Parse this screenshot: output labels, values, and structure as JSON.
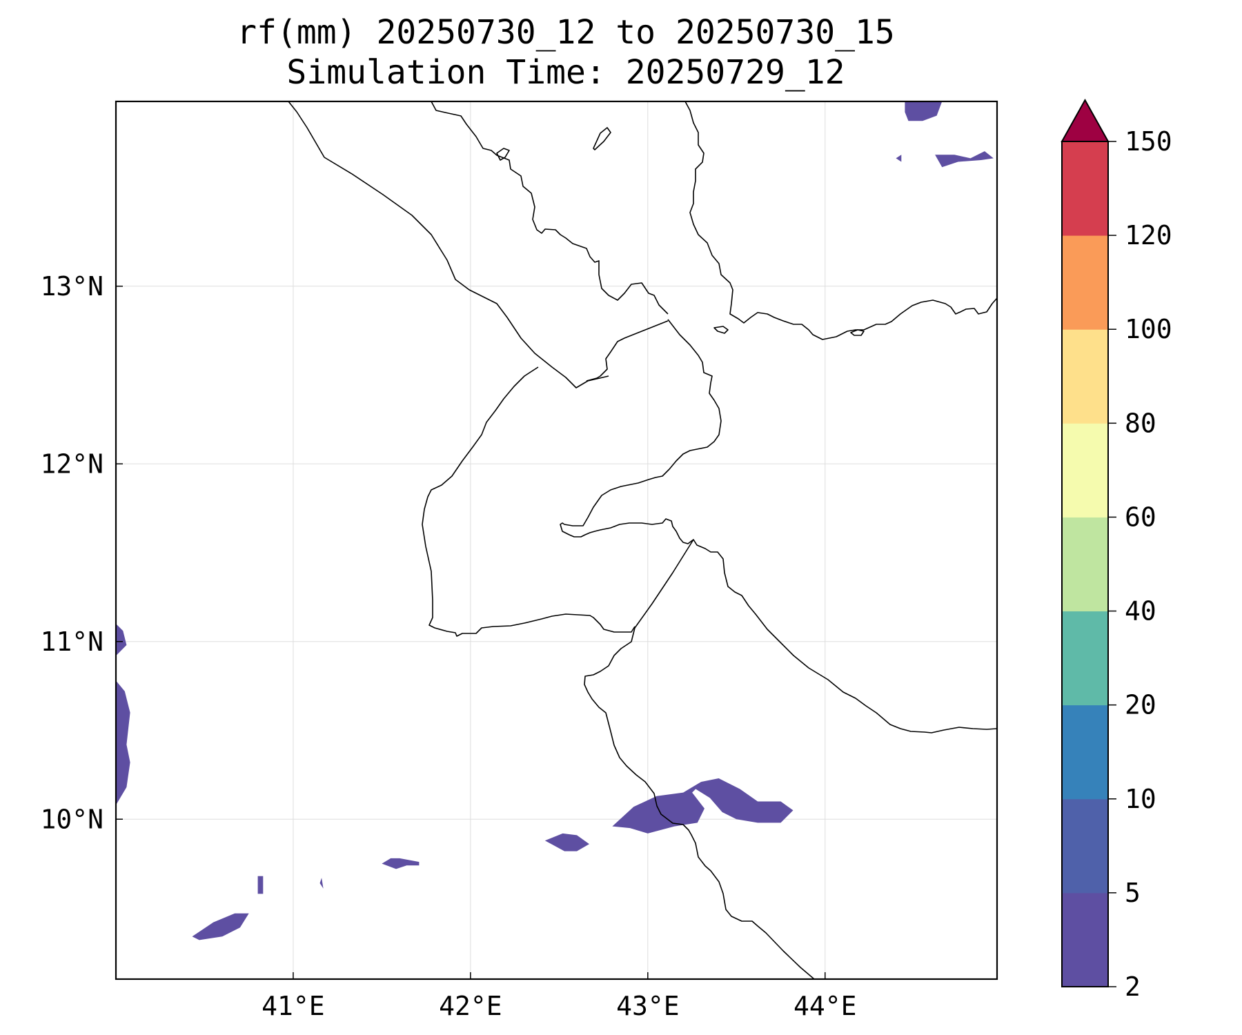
{
  "title": {
    "line1": "rf(mm) 20250730_12 to 20250730_15",
    "line2": "Simulation Time: 20250729_12"
  },
  "map": {
    "lon_range": [
      40.0,
      44.97
    ],
    "lat_range": [
      9.1,
      14.04
    ],
    "lon_ticks": [
      {
        "value": 41,
        "label": "41°E"
      },
      {
        "value": 42,
        "label": "42°E"
      },
      {
        "value": 43,
        "label": "43°E"
      },
      {
        "value": 44,
        "label": "44°E"
      }
    ],
    "lat_ticks": [
      {
        "value": 10,
        "label": "10°N"
      },
      {
        "value": 11,
        "label": "11°N"
      },
      {
        "value": 12,
        "label": "12°N"
      },
      {
        "value": 13,
        "label": "13°N"
      }
    ],
    "gridlines": true,
    "line_color": "#000000",
    "grid_color": "#dddddd"
  },
  "colorbar": {
    "levels": [
      {
        "value": 2,
        "label": "2",
        "color": "#5e4fa2"
      },
      {
        "value": 5,
        "label": "5",
        "color": "#4f61aa"
      },
      {
        "value": 10,
        "label": "10",
        "color": "#3682ba"
      },
      {
        "value": 20,
        "label": "20",
        "color": "#5fbaa8"
      },
      {
        "value": 40,
        "label": "40",
        "color": "#bfe5a0"
      },
      {
        "value": 60,
        "label": "60",
        "color": "#f5fbae"
      },
      {
        "value": 80,
        "label": "80",
        "color": "#fee08b"
      },
      {
        "value": 100,
        "label": "100",
        "color": "#fa9b58"
      },
      {
        "value": 120,
        "label": "120",
        "color": "#d53e4f"
      },
      {
        "value": 150,
        "label": "150",
        "color": "#9e0142"
      }
    ],
    "extend": "max",
    "placement": "right"
  },
  "chart_data": {
    "type": "filled-contour-map",
    "variable": "rf(mm)",
    "rain_areas_2_to_5mm": [
      [
        [
          40.0,
          10.92
        ],
        [
          40.06,
          10.98
        ],
        [
          40.04,
          11.06
        ],
        [
          40.0,
          11.1
        ]
      ],
      [
        [
          40.0,
          10.08
        ],
        [
          40.06,
          10.18
        ],
        [
          40.08,
          10.32
        ],
        [
          40.06,
          10.42
        ],
        [
          40.08,
          10.6
        ],
        [
          40.05,
          10.72
        ],
        [
          40.0,
          10.78
        ]
      ],
      [
        [
          40.43,
          9.34
        ],
        [
          40.55,
          9.42
        ],
        [
          40.67,
          9.47
        ],
        [
          40.75,
          9.47
        ],
        [
          40.7,
          9.39
        ],
        [
          40.6,
          9.34
        ],
        [
          40.47,
          9.32
        ]
      ],
      [
        [
          40.8,
          9.58
        ],
        [
          40.83,
          9.58
        ],
        [
          40.83,
          9.68
        ],
        [
          40.8,
          9.68
        ]
      ],
      [
        [
          41.15,
          9.64
        ],
        [
          41.17,
          9.61
        ],
        [
          41.16,
          9.67
        ]
      ],
      [
        [
          41.5,
          9.75
        ],
        [
          41.58,
          9.72
        ],
        [
          41.64,
          9.74
        ],
        [
          41.71,
          9.74
        ],
        [
          41.71,
          9.76
        ],
        [
          41.6,
          9.78
        ],
        [
          41.55,
          9.78
        ]
      ],
      [
        [
          42.42,
          9.88
        ],
        [
          42.52,
          9.92
        ],
        [
          42.6,
          9.91
        ],
        [
          42.67,
          9.86
        ],
        [
          42.6,
          9.82
        ],
        [
          42.53,
          9.82
        ]
      ],
      [
        [
          42.8,
          9.96
        ],
        [
          42.92,
          10.07
        ],
        [
          43.05,
          10.13
        ],
        [
          43.2,
          10.15
        ],
        [
          43.3,
          10.21
        ],
        [
          43.4,
          10.23
        ],
        [
          43.52,
          10.17
        ],
        [
          43.62,
          10.1
        ],
        [
          43.75,
          10.1
        ],
        [
          43.82,
          10.05
        ],
        [
          43.75,
          9.98
        ],
        [
          43.62,
          9.98
        ],
        [
          43.5,
          10.0
        ],
        [
          43.42,
          10.04
        ],
        [
          43.35,
          10.12
        ],
        [
          43.27,
          10.17
        ],
        [
          43.25,
          10.15
        ],
        [
          43.32,
          10.06
        ],
        [
          43.28,
          9.98
        ],
        [
          43.15,
          9.96
        ],
        [
          43.0,
          9.92
        ],
        [
          42.9,
          9.95
        ]
      ],
      [
        [
          44.45,
          14.04
        ],
        [
          44.66,
          14.04
        ],
        [
          44.63,
          13.96
        ],
        [
          44.55,
          13.93
        ],
        [
          44.47,
          13.93
        ],
        [
          44.45,
          13.98
        ]
      ],
      [
        [
          44.4,
          13.72
        ],
        [
          44.43,
          13.74
        ],
        [
          44.43,
          13.7
        ]
      ],
      [
        [
          44.62,
          13.74
        ],
        [
          44.73,
          13.74
        ],
        [
          44.82,
          13.72
        ],
        [
          44.9,
          13.76
        ],
        [
          44.95,
          13.72
        ],
        [
          44.88,
          13.71
        ],
        [
          44.75,
          13.7
        ],
        [
          44.66,
          13.67
        ]
      ]
    ]
  }
}
